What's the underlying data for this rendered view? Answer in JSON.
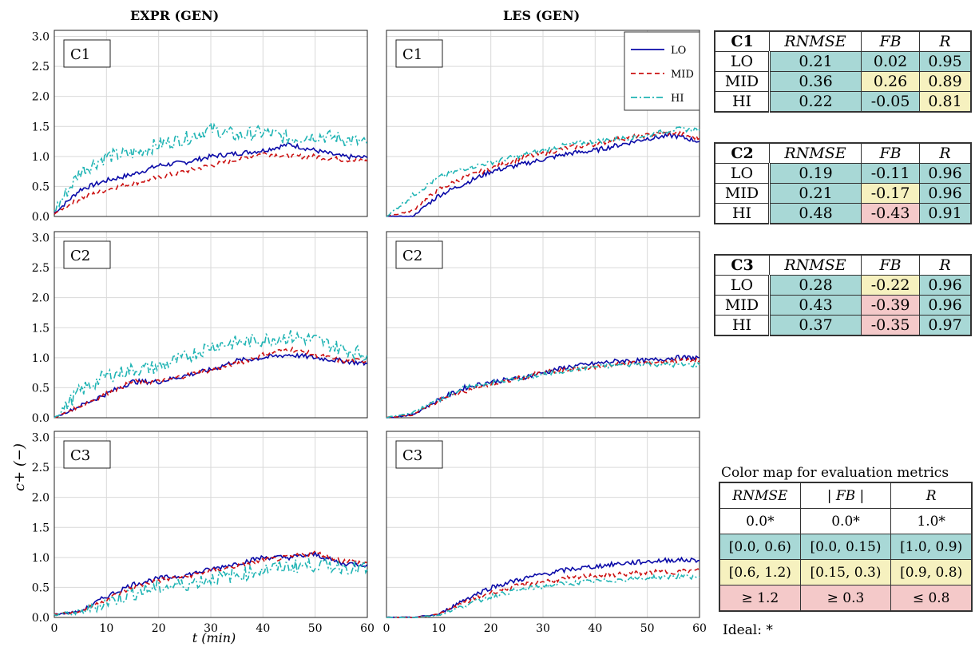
{
  "columns": [
    "EXPR (GEN)",
    "LES (GEN)"
  ],
  "legend": [
    "LO",
    "MID",
    "HI"
  ],
  "colors": {
    "LO": "#0a0aa8",
    "MID": "#cc1111",
    "HI": "#20b4b4",
    "green": "#a8d8d6",
    "yellow": "#f6f1bf",
    "red": "#f4c9c9"
  },
  "chart_data": {
    "type": "line",
    "xlabel": "t (min)",
    "ylabel": "c+ (−)",
    "xlim": [
      0,
      60
    ],
    "ylim": [
      0,
      3.1
    ],
    "xticks": [
      "0",
      "10",
      "20",
      "30",
      "40",
      "50",
      "60"
    ],
    "yticks": [
      "0.0",
      "0.5",
      "1.0",
      "1.5",
      "2.0",
      "2.5",
      "3.0"
    ],
    "grid": true,
    "legend_position": "top-right",
    "panels": [
      {
        "label": "C1",
        "column": "EXPR (GEN)",
        "series": [
          {
            "name": "LO",
            "x": [
              0,
              5,
              10,
              15,
              20,
              25,
              30,
              35,
              40,
              45,
              50,
              55,
              60
            ],
            "y": [
              0.05,
              0.45,
              0.6,
              0.7,
              0.85,
              0.9,
              1.0,
              1.05,
              1.1,
              1.2,
              1.1,
              1.0,
              0.98
            ]
          },
          {
            "name": "MID",
            "x": [
              0,
              5,
              10,
              15,
              20,
              25,
              30,
              35,
              40,
              45,
              50,
              55,
              60
            ],
            "y": [
              0.05,
              0.3,
              0.45,
              0.55,
              0.65,
              0.75,
              0.85,
              0.95,
              1.05,
              1.0,
              1.0,
              0.95,
              0.92
            ]
          },
          {
            "name": "HI",
            "x": [
              0,
              5,
              10,
              15,
              20,
              25,
              30,
              35,
              40,
              45,
              50,
              55,
              60
            ],
            "y": [
              0.1,
              0.75,
              1.0,
              1.05,
              1.2,
              1.3,
              1.45,
              1.35,
              1.4,
              1.3,
              1.35,
              1.3,
              1.2
            ]
          }
        ]
      },
      {
        "label": "C1",
        "column": "LES (GEN)",
        "series": [
          {
            "name": "LO",
            "x": [
              0,
              5,
              10,
              15,
              20,
              25,
              30,
              35,
              40,
              45,
              50,
              55,
              60
            ],
            "y": [
              0.0,
              0.0,
              0.35,
              0.55,
              0.75,
              0.85,
              0.95,
              1.05,
              1.1,
              1.2,
              1.3,
              1.35,
              1.25
            ]
          },
          {
            "name": "MID",
            "x": [
              0,
              5,
              10,
              15,
              20,
              25,
              30,
              35,
              40,
              45,
              50,
              55,
              60
            ],
            "y": [
              0.0,
              0.1,
              0.45,
              0.65,
              0.8,
              0.95,
              1.05,
              1.15,
              1.2,
              1.3,
              1.35,
              1.4,
              1.3
            ]
          },
          {
            "name": "HI",
            "x": [
              0,
              5,
              10,
              15,
              20,
              25,
              30,
              35,
              40,
              45,
              50,
              55,
              60
            ],
            "y": [
              0.0,
              0.35,
              0.65,
              0.8,
              0.9,
              1.0,
              1.1,
              1.2,
              1.25,
              1.3,
              1.35,
              1.45,
              1.45
            ]
          }
        ]
      },
      {
        "label": "C2",
        "column": "EXPR (GEN)",
        "series": [
          {
            "name": "LO",
            "x": [
              0,
              5,
              10,
              15,
              20,
              25,
              30,
              35,
              40,
              45,
              50,
              55,
              60
            ],
            "y": [
              0.0,
              0.2,
              0.4,
              0.6,
              0.6,
              0.7,
              0.8,
              0.95,
              1.0,
              1.05,
              1.0,
              0.95,
              0.9
            ]
          },
          {
            "name": "MID",
            "x": [
              0,
              5,
              10,
              15,
              20,
              25,
              30,
              35,
              40,
              45,
              50,
              55,
              60
            ],
            "y": [
              0.0,
              0.2,
              0.4,
              0.6,
              0.6,
              0.7,
              0.8,
              0.9,
              1.05,
              1.15,
              1.05,
              0.95,
              0.95
            ]
          },
          {
            "name": "HI",
            "x": [
              0,
              5,
              10,
              15,
              20,
              25,
              30,
              35,
              40,
              45,
              50,
              55,
              60
            ],
            "y": [
              0.0,
              0.45,
              0.7,
              0.8,
              0.85,
              1.0,
              1.2,
              1.25,
              1.3,
              1.35,
              1.3,
              1.15,
              1.05
            ]
          }
        ]
      },
      {
        "label": "C2",
        "column": "LES (GEN)",
        "series": [
          {
            "name": "LO",
            "x": [
              0,
              5,
              10,
              15,
              20,
              25,
              30,
              35,
              40,
              45,
              50,
              55,
              60
            ],
            "y": [
              0.0,
              0.05,
              0.3,
              0.5,
              0.6,
              0.65,
              0.75,
              0.85,
              0.9,
              0.95,
              0.95,
              1.0,
              1.0
            ]
          },
          {
            "name": "MID",
            "x": [
              0,
              5,
              10,
              15,
              20,
              25,
              30,
              35,
              40,
              45,
              50,
              55,
              60
            ],
            "y": [
              0.0,
              0.05,
              0.28,
              0.45,
              0.55,
              0.65,
              0.75,
              0.8,
              0.85,
              0.9,
              0.92,
              0.95,
              0.95
            ]
          },
          {
            "name": "HI",
            "x": [
              0,
              5,
              10,
              15,
              20,
              25,
              30,
              35,
              40,
              45,
              50,
              55,
              60
            ],
            "y": [
              0.0,
              0.08,
              0.3,
              0.5,
              0.58,
              0.65,
              0.72,
              0.8,
              0.85,
              0.88,
              0.9,
              0.88,
              0.88
            ]
          }
        ]
      },
      {
        "label": "C3",
        "column": "EXPR (GEN)",
        "series": [
          {
            "name": "LO",
            "x": [
              0,
              5,
              10,
              15,
              20,
              25,
              30,
              35,
              40,
              45,
              50,
              55,
              60
            ],
            "y": [
              0.05,
              0.1,
              0.35,
              0.55,
              0.65,
              0.7,
              0.8,
              0.9,
              1.0,
              1.0,
              1.05,
              0.9,
              0.88
            ]
          },
          {
            "name": "MID",
            "x": [
              0,
              5,
              10,
              15,
              20,
              25,
              30,
              35,
              40,
              45,
              50,
              55,
              60
            ],
            "y": [
              0.05,
              0.1,
              0.3,
              0.5,
              0.62,
              0.68,
              0.78,
              0.85,
              0.95,
              1.0,
              1.08,
              0.95,
              0.9
            ]
          },
          {
            "name": "HI",
            "x": [
              0,
              5,
              10,
              15,
              20,
              25,
              30,
              35,
              40,
              45,
              50,
              55,
              60
            ],
            "y": [
              0.05,
              0.08,
              0.25,
              0.4,
              0.5,
              0.55,
              0.65,
              0.7,
              0.8,
              0.85,
              0.88,
              0.85,
              0.8
            ]
          }
        ]
      },
      {
        "label": "C3",
        "column": "LES (GEN)",
        "series": [
          {
            "name": "LO",
            "x": [
              0,
              5,
              10,
              15,
              20,
              25,
              30,
              35,
              40,
              45,
              50,
              55,
              60
            ],
            "y": [
              0.0,
              0.0,
              0.05,
              0.3,
              0.5,
              0.62,
              0.72,
              0.8,
              0.85,
              0.9,
              0.93,
              0.96,
              0.95
            ]
          },
          {
            "name": "MID",
            "x": [
              0,
              5,
              10,
              15,
              20,
              25,
              30,
              35,
              40,
              45,
              50,
              55,
              60
            ],
            "y": [
              0.0,
              0.0,
              0.05,
              0.25,
              0.42,
              0.52,
              0.6,
              0.65,
              0.7,
              0.72,
              0.75,
              0.76,
              0.78
            ]
          },
          {
            "name": "HI",
            "x": [
              0,
              5,
              10,
              15,
              20,
              25,
              30,
              35,
              40,
              45,
              50,
              55,
              60
            ],
            "y": [
              0.0,
              0.0,
              0.04,
              0.2,
              0.35,
              0.45,
              0.52,
              0.57,
              0.6,
              0.63,
              0.66,
              0.68,
              0.68
            ]
          }
        ]
      }
    ]
  },
  "tables": [
    {
      "case": "C1",
      "headers": [
        "RNMSE",
        "FB",
        "R"
      ],
      "rows": [
        {
          "label": "LO",
          "values": [
            "0.21",
            "0.02",
            "0.95"
          ],
          "colors": [
            "green",
            "green",
            "green"
          ]
        },
        {
          "label": "MID",
          "values": [
            "0.36",
            "0.26",
            "0.89"
          ],
          "colors": [
            "green",
            "yellow",
            "yellow"
          ]
        },
        {
          "label": "HI",
          "values": [
            "0.22",
            "-0.05",
            "0.81"
          ],
          "colors": [
            "green",
            "green",
            "yellow"
          ]
        }
      ]
    },
    {
      "case": "C2",
      "headers": [
        "RNMSE",
        "FB",
        "R"
      ],
      "rows": [
        {
          "label": "LO",
          "values": [
            "0.19",
            "-0.11",
            "0.96"
          ],
          "colors": [
            "green",
            "green",
            "green"
          ]
        },
        {
          "label": "MID",
          "values": [
            "0.21",
            "-0.17",
            "0.96"
          ],
          "colors": [
            "green",
            "yellow",
            "green"
          ]
        },
        {
          "label": "HI",
          "values": [
            "0.48",
            "-0.43",
            "0.91"
          ],
          "colors": [
            "green",
            "red",
            "green"
          ]
        }
      ]
    },
    {
      "case": "C3",
      "headers": [
        "RNMSE",
        "FB",
        "R"
      ],
      "rows": [
        {
          "label": "LO",
          "values": [
            "0.28",
            "-0.22",
            "0.96"
          ],
          "colors": [
            "green",
            "yellow",
            "green"
          ]
        },
        {
          "label": "MID",
          "values": [
            "0.43",
            "-0.39",
            "0.96"
          ],
          "colors": [
            "green",
            "red",
            "green"
          ]
        },
        {
          "label": "HI",
          "values": [
            "0.37",
            "-0.35",
            "0.97"
          ],
          "colors": [
            "green",
            "red",
            "green"
          ]
        }
      ]
    }
  ],
  "colormap": {
    "title": "Color map for evaluation metrics",
    "headers": [
      "RNMSE",
      "| FB |",
      "R"
    ],
    "ideal_row": [
      "0.0*",
      "0.0*",
      "1.0*"
    ],
    "green_row": [
      "[0.0, 0.6)",
      "[0.0, 0.15)",
      "[1.0, 0.9)"
    ],
    "yellow_row": [
      "[0.6, 1.2)",
      "[0.15, 0.3)",
      "[0.9, 0.8)"
    ],
    "red_row": [
      "≥ 1.2",
      "≥ 0.3",
      "≤ 0.8"
    ],
    "ideal_note": "Ideal: *"
  }
}
